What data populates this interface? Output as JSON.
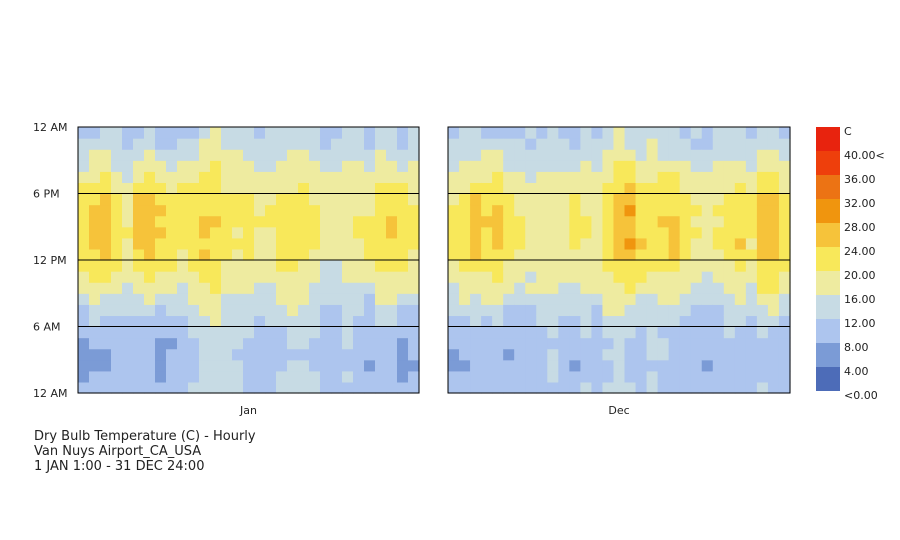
{
  "chart_data": {
    "type": "heatmap",
    "title": "Dry Bulb Temperature (C) - Hourly",
    "location": "Van Nuys Airport_CA_USA",
    "date_range": "1 JAN 1:00 - 31 DEC 24:00",
    "y_axis": {
      "ticks": [
        "12 AM",
        "6 PM",
        "12 PM",
        "6 AM",
        "12 AM"
      ],
      "range_hours": [
        0,
        24
      ]
    },
    "panels": [
      {
        "month": "Jan",
        "days": 31,
        "daily_min": [
          8,
          8,
          8,
          10,
          9,
          8,
          9,
          7,
          8,
          9,
          10,
          12,
          14,
          13,
          12,
          11,
          9,
          10,
          11,
          12,
          12,
          11,
          9,
          10,
          12,
          10,
          7,
          11,
          9,
          7,
          9
        ],
        "daily_max": [
          23,
          25,
          26,
          22,
          20,
          25,
          27,
          25,
          23,
          22,
          24,
          25,
          24,
          21,
          21,
          21,
          20,
          20,
          23,
          22,
          22,
          20,
          19,
          18,
          19,
          20,
          21,
          23,
          24,
          23,
          22
        ]
      },
      {
        "month": "Dec",
        "days": 31,
        "daily_min": [
          8,
          8,
          9,
          10,
          9,
          8,
          9,
          10,
          11,
          12,
          9,
          8,
          11,
          10,
          12,
          13,
          11,
          10,
          12,
          11,
          10,
          9,
          9,
          8,
          9,
          11,
          10,
          9,
          11,
          10,
          9
        ],
        "daily_max": [
          22,
          24,
          25,
          23,
          26,
          22,
          20,
          19,
          20,
          19,
          20,
          21,
          20,
          19,
          23,
          26,
          28,
          24,
          23,
          24,
          25,
          22,
          20,
          19,
          20,
          22,
          24,
          21,
          26,
          27,
          23
        ]
      }
    ],
    "legend": {
      "unit": "C",
      "labels": [
        "40.00<",
        "36.00",
        "32.00",
        "28.00",
        "24.00",
        "20.00",
        "16.00",
        "12.00",
        "8.00",
        "4.00",
        "<0.00"
      ],
      "colors": [
        "#e8230e",
        "#ee3f0c",
        "#ec7314",
        "#f0950e",
        "#f6c33a",
        "#f8e85a",
        "#eeeba0",
        "#c7dbe4",
        "#adc5ee",
        "#7b9bd6",
        "#4d6cb8"
      ]
    }
  }
}
